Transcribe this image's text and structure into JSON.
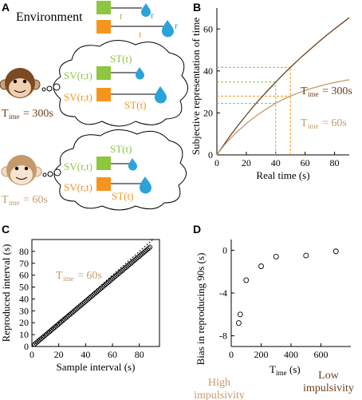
{
  "panels": {
    "A": {
      "letter": "A",
      "environment_label": "Environment",
      "t_label": "t",
      "r_label": "r",
      "sv_label": "SV(r,t)",
      "st_label": "ST(t)",
      "t_subscript": "ime",
      "t_main": "T",
      "monkey_high_value": "= 300s",
      "monkey_low_value": "= 60s"
    },
    "B": {
      "letter": "B"
    },
    "C": {
      "letter": "C"
    },
    "D": {
      "letter": "D"
    }
  },
  "colors": {
    "green": "#8dc63f",
    "orange": "#f7941d",
    "brown_dark": "#6b3f1f",
    "brown_light": "#c49a6c",
    "drop_blue": "#29a3d9"
  },
  "chart_data": [
    {
      "id": "B",
      "type": "line",
      "xlabel": "Real time (s)",
      "ylabel": "Subjective representation of time",
      "xlim": [
        0,
        90
      ],
      "ylim": [
        0,
        70
      ],
      "xticks": [
        0,
        20,
        40,
        60,
        80
      ],
      "yticks": [
        0,
        20,
        40,
        60
      ],
      "series": [
        {
          "name": "T_ime = 300s",
          "legend_main": "T",
          "legend_sub": "ime",
          "legend_value": "= 300s",
          "color": "#6b3f1f",
          "x": [
            0,
            5,
            10,
            15,
            20,
            25,
            30,
            35,
            40,
            45,
            50,
            55,
            60,
            65,
            70,
            75,
            80,
            85,
            90
          ],
          "values": [
            0,
            5.1,
            10.0,
            14.6,
            19.0,
            23.2,
            27.2,
            31.0,
            34.7,
            38.3,
            41.7,
            45.0,
            48.2,
            51.3,
            54.3,
            57.2,
            60.0,
            62.7,
            65.4
          ]
        },
        {
          "name": "T_ime = 60s",
          "legend_main": "T",
          "legend_sub": "ime",
          "legend_value": "= 60s",
          "color": "#c49a6c",
          "x": [
            0,
            5,
            10,
            15,
            20,
            25,
            30,
            35,
            40,
            45,
            50,
            55,
            60,
            65,
            70,
            75,
            80,
            85,
            90
          ],
          "values": [
            0,
            4.6,
            8.4,
            11.8,
            14.9,
            17.7,
            20.2,
            22.5,
            24.6,
            26.4,
            28.0,
            29.4,
            30.7,
            31.8,
            32.8,
            33.7,
            34.5,
            35.2,
            35.8
          ]
        }
      ],
      "guides": [
        {
          "x": 40,
          "y_high": 34.7,
          "y_low": 24.6,
          "color": "#8dc63f"
        },
        {
          "x": 50,
          "y_high": 41.7,
          "y_low": 28.0,
          "color": "#f7941d"
        }
      ]
    },
    {
      "id": "C",
      "type": "scatter",
      "xlabel": "Sample interval (s)",
      "ylabel": "Reproduced interval (s)",
      "annotation_main": "T",
      "annotation_sub": "ime",
      "annotation_value": "= 60s",
      "xlim": [
        0,
        95
      ],
      "ylim": [
        0,
        90
      ],
      "xticks": [
        0,
        20,
        40,
        60,
        80
      ],
      "yticks": [
        0,
        10,
        20,
        30,
        40,
        50,
        60,
        70,
        80
      ],
      "x_start": 2,
      "x_end": 88,
      "x_step": 1,
      "slope": 0.95,
      "identity_line": true
    },
    {
      "id": "D",
      "type": "scatter",
      "xlabel_main": "T",
      "xlabel_sub": "ime",
      "xlabel_unit": " (s)",
      "ylabel": "Bias in reproducing 90s (s)",
      "xlim": [
        0,
        800
      ],
      "ylim": [
        -9,
        1
      ],
      "xticks": [
        0,
        200,
        400,
        600
      ],
      "yticks": [
        0,
        -4,
        -8
      ],
      "x": [
        50,
        60,
        100,
        200,
        300,
        500,
        700
      ],
      "values": [
        -6.8,
        -6.0,
        -2.8,
        -1.5,
        -0.6,
        -0.5,
        -0.1
      ],
      "left_caption_line1": "High",
      "left_caption_line2": "impulsivity",
      "right_caption_line1": "Low",
      "right_caption_line2": "impulsivity"
    }
  ]
}
